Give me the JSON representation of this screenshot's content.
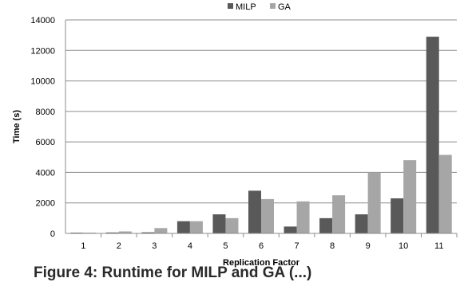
{
  "chart_data": {
    "type": "bar",
    "title": "",
    "xlabel": "Replication Factor",
    "ylabel": "Time (s)",
    "categories": [
      "1",
      "2",
      "3",
      "4",
      "5",
      "6",
      "7",
      "8",
      "9",
      "10",
      "11"
    ],
    "series": [
      {
        "name": "MILP",
        "color": "#595959",
        "values": [
          50,
          60,
          70,
          800,
          1250,
          2800,
          450,
          1000,
          1250,
          2300,
          12900
        ]
      },
      {
        "name": "GA",
        "color": "#a6a6a6",
        "values": [
          50,
          130,
          350,
          800,
          1000,
          2250,
          2100,
          2500,
          4000,
          4800,
          5150
        ]
      }
    ],
    "ylim": [
      0,
      14000
    ],
    "yticks": [
      0,
      2000,
      4000,
      6000,
      8000,
      10000,
      12000,
      14000
    ],
    "grid": true,
    "legend_position": "top"
  },
  "caption": "Figure 4: Runtime for MILP and GA (...)"
}
